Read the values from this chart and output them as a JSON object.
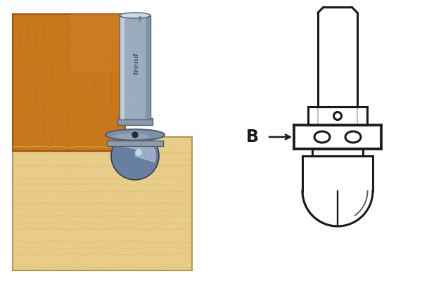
{
  "bg_color": "#ffffff",
  "wood_orange_color": "#c8781a",
  "wood_orange_edge": "#a05010",
  "wood_light_color": "#e8cc88",
  "wood_light_grain1": "#d4b870",
  "wood_light_grain2": "#dcc87a",
  "shank_mid": "#9aacbe",
  "shank_light": "#ccd8e4",
  "shank_dark": "#6a7e92",
  "shank_edge": "#506070",
  "collar_color": "#8898ae",
  "guide_color": "#7a8898",
  "cutter_blue": "#6880a0",
  "cutter_light": "#a8bcd0",
  "cutter_highlight": "#c8d8e8",
  "lc": "#1a1a1a",
  "lw": 2.2,
  "label_B": "B"
}
